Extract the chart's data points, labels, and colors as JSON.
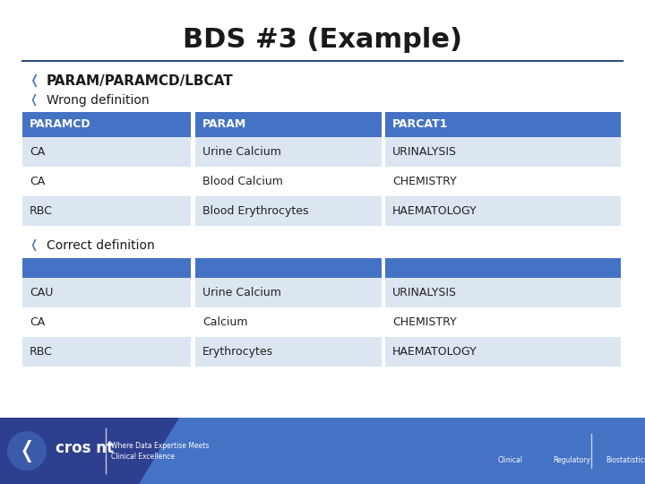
{
  "title": "BDS #3 (Example)",
  "title_fontsize": 22,
  "title_fontweight": "bold",
  "background_color": "#ffffff",
  "header_color": "#4472c4",
  "row_even_color": "#dce6f1",
  "row_odd_color": "#ffffff",
  "bullet_color": "#4472c4",
  "bullet1_text": "PARAM/PARAMCD/LBCAT",
  "bullet2_text": "Wrong definition",
  "bullet3_text": "Correct definition",
  "table1_headers": [
    "PARAMCD",
    "PARAM",
    "PARCAT1"
  ],
  "table1_rows": [
    [
      "CA",
      "Urine Calcium",
      "URINALYSIS"
    ],
    [
      "CA",
      "Blood Calcium",
      "CHEMISTRY"
    ],
    [
      "RBC",
      "Blood Erythrocytes",
      "HAEMATOLOGY"
    ]
  ],
  "table2_rows": [
    [
      "CAU",
      "Urine Calcium",
      "URINALYSIS"
    ],
    [
      "CA",
      "Calcium",
      "CHEMISTRY"
    ],
    [
      "RBC",
      "Erythrocytes",
      "HAEMATOLOGY"
    ]
  ],
  "header_text_color": "#ffffff",
  "cell_text_color": "#222222",
  "line_color": "#2e4d7b",
  "footer_color": "#4472c4",
  "footer_dark_color": "#2e3f8f"
}
